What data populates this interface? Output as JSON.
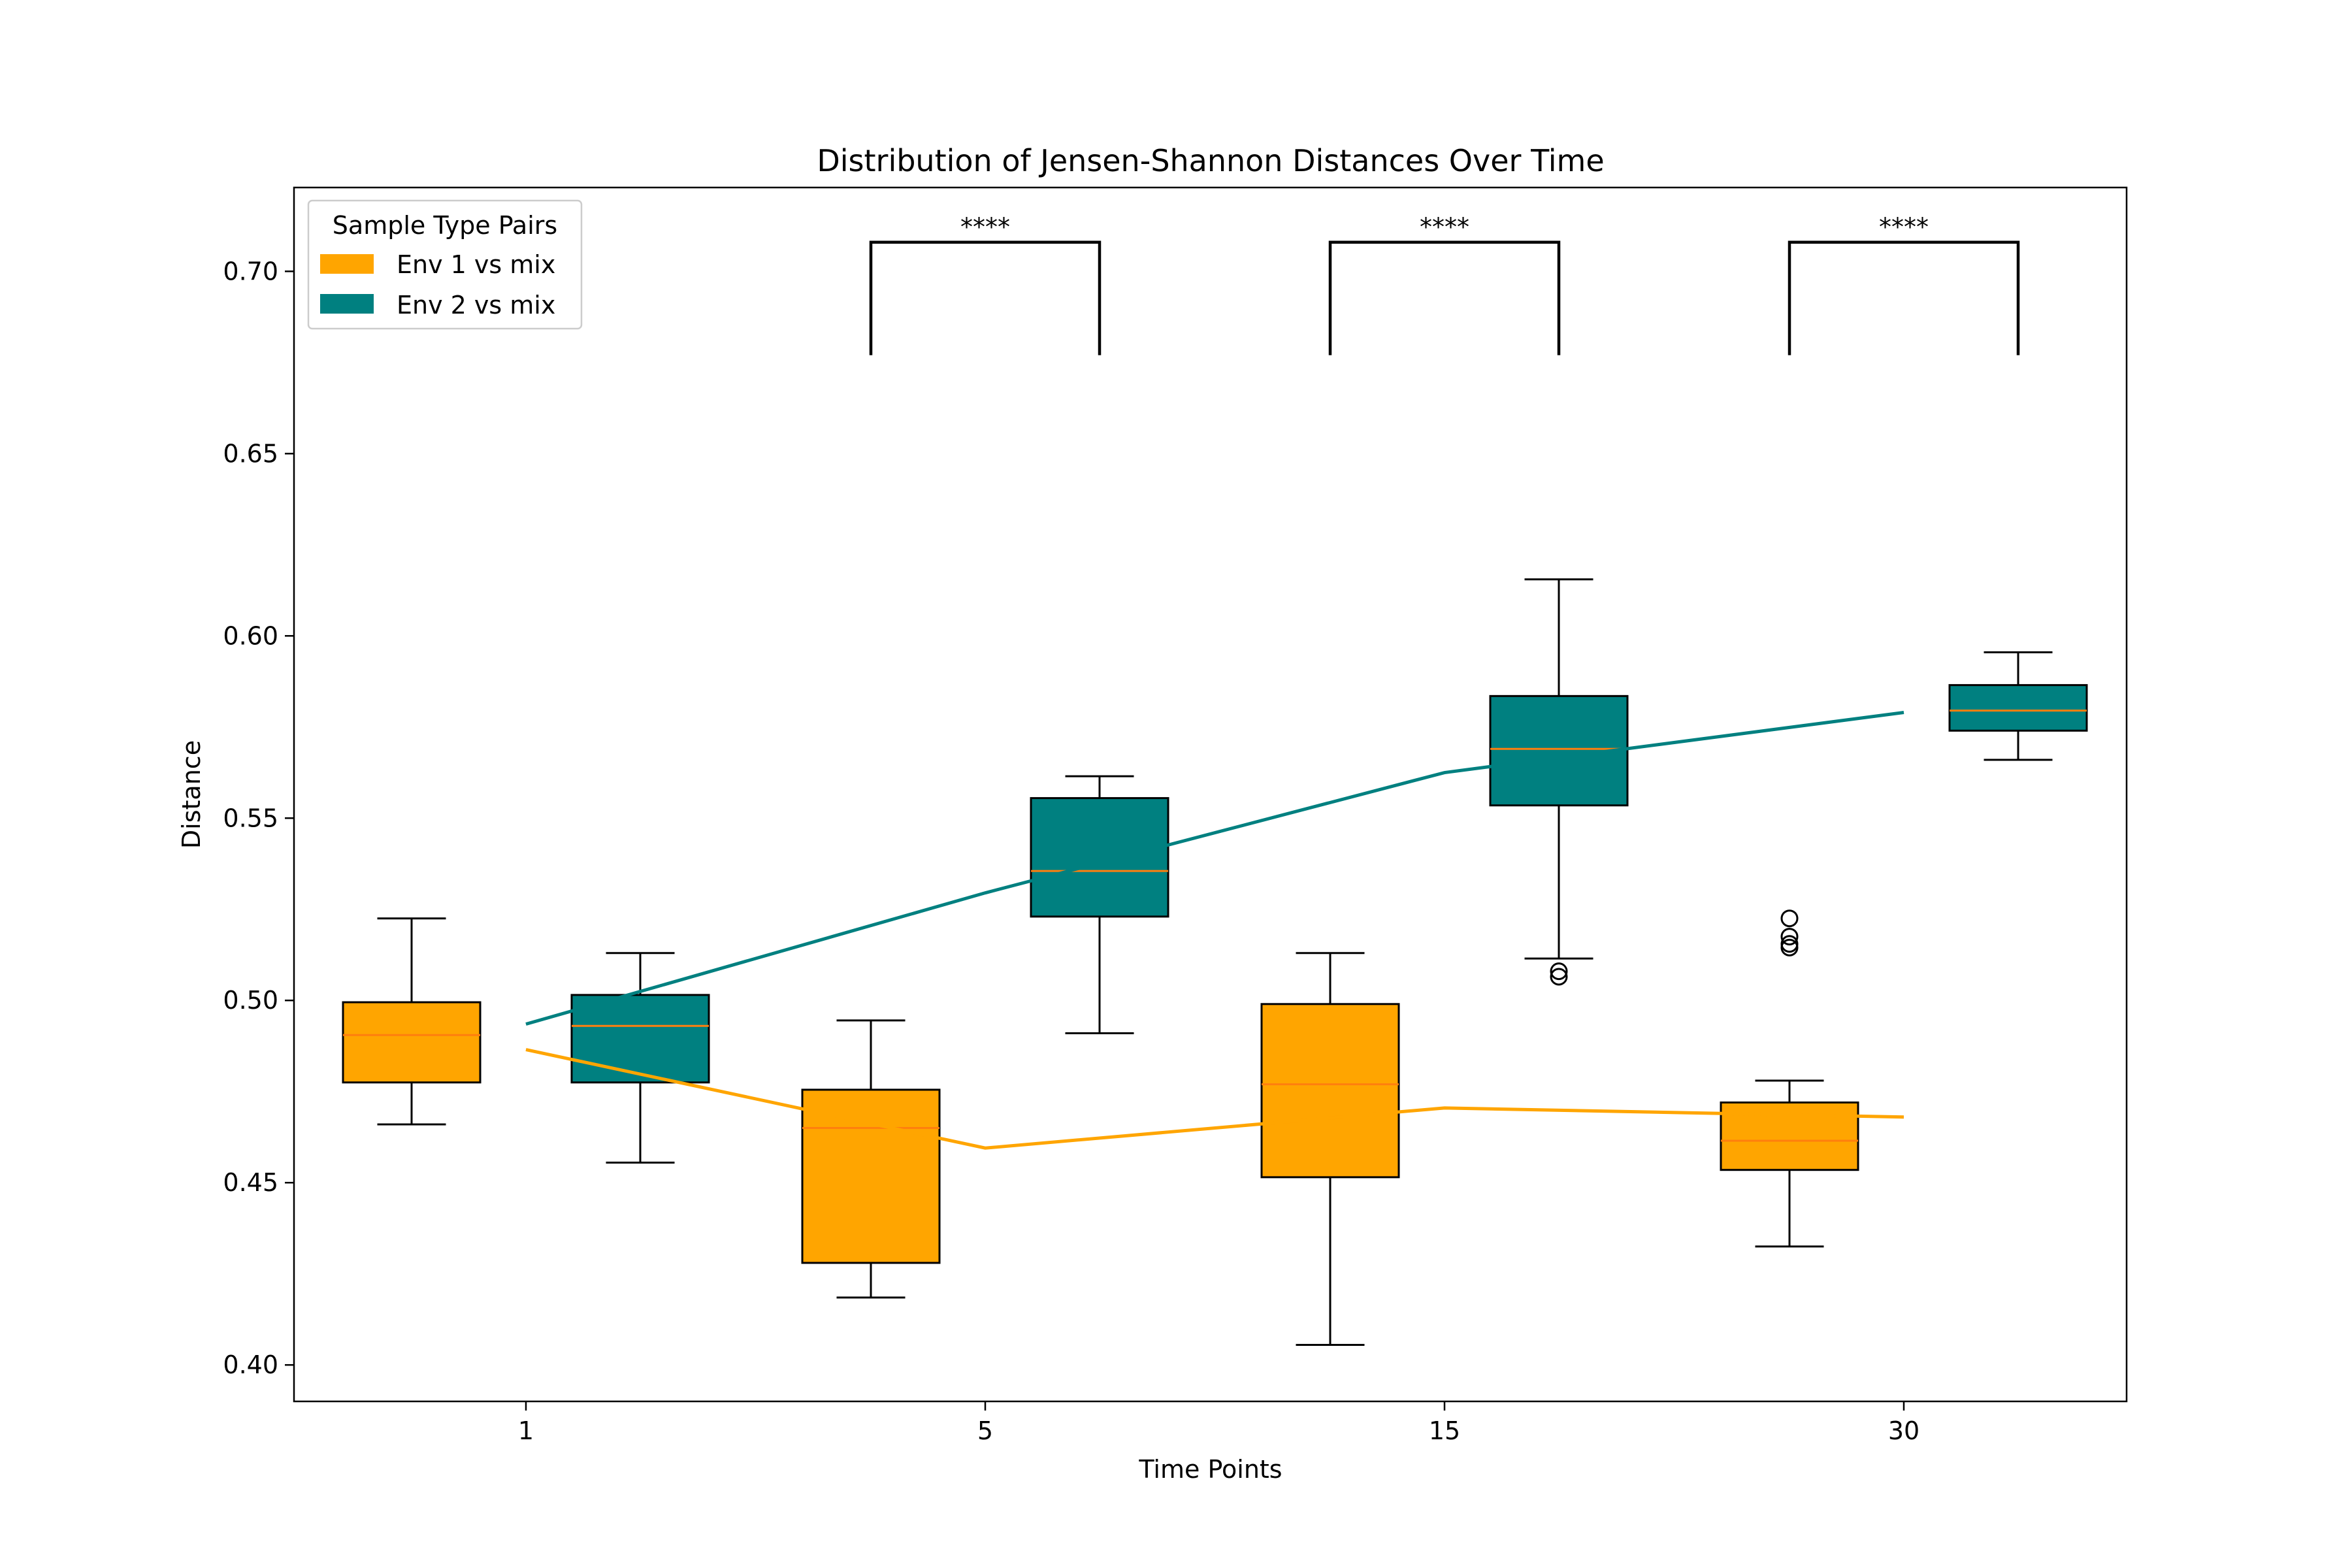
{
  "chart_data": {
    "type": "box",
    "title": "Distribution of Jensen-Shannon Distances Over Time",
    "xlabel": "Time Points",
    "ylabel": "Distance",
    "categories": [
      "1",
      "5",
      "15",
      "30"
    ],
    "ylim": [
      0.39,
      0.723
    ],
    "yticks": [
      0.4,
      0.45,
      0.5,
      0.55,
      0.6,
      0.65,
      0.7
    ],
    "ytick_labels": [
      "0.40",
      "0.45",
      "0.50",
      "0.55",
      "0.60",
      "0.65",
      "0.70"
    ],
    "grid": false,
    "legend": {
      "title": "Sample Type Pairs",
      "placement": "top-left"
    },
    "series": [
      {
        "name": "Env 1 vs mix",
        "color": "#FFA500",
        "boxes": [
          {
            "whisker_low": 0.466,
            "q1": 0.4775,
            "median": 0.4905,
            "q3": 0.4995,
            "whisker_high": 0.5225,
            "outliers": []
          },
          {
            "whisker_low": 0.4185,
            "q1": 0.428,
            "median": 0.465,
            "q3": 0.4755,
            "whisker_high": 0.4945,
            "outliers": []
          },
          {
            "whisker_low": 0.4055,
            "q1": 0.4515,
            "median": 0.477,
            "q3": 0.499,
            "whisker_high": 0.513,
            "outliers": []
          },
          {
            "whisker_low": 0.4325,
            "q1": 0.4535,
            "median": 0.4615,
            "q3": 0.472,
            "whisker_high": 0.478,
            "outliers": [
              0.5145,
              0.5155,
              0.5175,
              0.5225
            ]
          }
        ],
        "trend": [
          0.4865,
          0.4595,
          0.4705,
          0.468
        ]
      },
      {
        "name": "Env 2 vs mix",
        "color": "#008080",
        "boxes": [
          {
            "whisker_low": 0.4555,
            "q1": 0.4775,
            "median": 0.493,
            "q3": 0.5015,
            "whisker_high": 0.513,
            "outliers": []
          },
          {
            "whisker_low": 0.491,
            "q1": 0.523,
            "median": 0.5355,
            "q3": 0.5555,
            "whisker_high": 0.5615,
            "outliers": []
          },
          {
            "whisker_low": 0.5115,
            "q1": 0.5535,
            "median": 0.569,
            "q3": 0.5835,
            "whisker_high": 0.6155,
            "outliers": [
              0.5065,
              0.508
            ]
          },
          {
            "whisker_low": 0.566,
            "q1": 0.574,
            "median": 0.5795,
            "q3": 0.5865,
            "whisker_high": 0.5955,
            "outliers": []
          }
        ],
        "trend": [
          0.4935,
          0.5295,
          0.5625,
          0.579
        ]
      }
    ],
    "significance": [
      {
        "category": "5",
        "label": "****"
      },
      {
        "category": "15",
        "label": "****"
      },
      {
        "category": "30",
        "label": "****"
      }
    ],
    "median_color": "#FF7F0E"
  }
}
